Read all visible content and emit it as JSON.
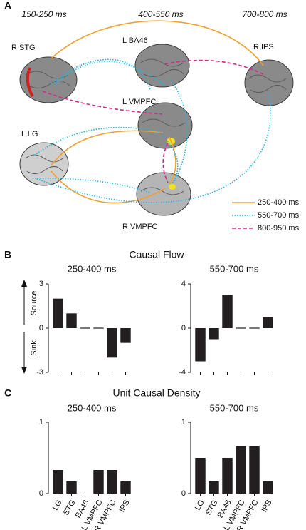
{
  "panel_a": {
    "label": "A",
    "time_labels": [
      "150-250 ms",
      "400-550 ms",
      "700-800 ms"
    ],
    "nodes": [
      "R STG",
      "L BA46",
      "R IPS",
      "L VMPFC",
      "L LG",
      "R VMPFC"
    ],
    "legend": [
      "250-400 ms",
      "550-700 ms",
      "800-950 ms"
    ]
  },
  "panel_b": {
    "label": "B",
    "title": "Causal Flow",
    "source": "Source",
    "sink": "Sink"
  },
  "panel_c": {
    "label": "C",
    "title": "Unit Causal Density"
  },
  "chart_data": [
    {
      "type": "bar",
      "title": "250-400 ms",
      "categories": [
        null,
        null,
        null,
        null,
        null,
        null
      ],
      "values": [
        2,
        1,
        0,
        0,
        -2,
        -1
      ],
      "color": "#231f20",
      "ylim": [
        -3,
        3
      ],
      "yticks": [
        -3,
        0,
        3
      ]
    },
    {
      "type": "bar",
      "title": "550-700 ms",
      "categories": [
        null,
        null,
        null,
        null,
        null,
        null
      ],
      "values": [
        -3,
        -1,
        3,
        0,
        0,
        1
      ],
      "color": "#231f20",
      "ylim": [
        -4,
        4
      ],
      "yticks": [
        -4,
        0,
        4
      ]
    },
    {
      "type": "bar",
      "title": "250-400 ms",
      "categories": [
        "LG",
        "STG",
        "BA46",
        "L VMPFC",
        "R VMPFC",
        "IPS"
      ],
      "values": [
        0.33,
        0.17,
        0,
        0.33,
        0.33,
        0.17
      ],
      "color": "#231f20",
      "ylim": [
        0,
        1
      ],
      "yticks": [
        0,
        1
      ]
    },
    {
      "type": "bar",
      "title": "550-700 ms",
      "categories": [
        "LG",
        "STG",
        "BA46",
        "L VMPFC",
        "R VMPFC",
        "IPS"
      ],
      "values": [
        0.5,
        0.17,
        0.5,
        0.67,
        0.67,
        0.17
      ],
      "color": "#231f20",
      "ylim": [
        0,
        1
      ],
      "yticks": [
        0,
        1
      ]
    }
  ]
}
